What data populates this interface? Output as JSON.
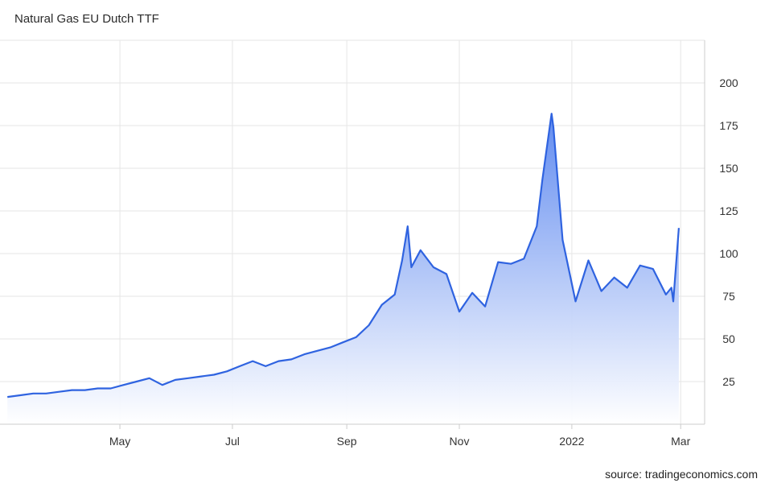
{
  "header": {
    "title": "Natural Gas EU Dutch TTF"
  },
  "footer": {
    "source": "source: tradingeconomics.com"
  },
  "colors": {
    "line": "#2f63e0",
    "fill_top": "#5a86ef",
    "fill_bottom": "#ffffff",
    "grid": "#e6e6e6",
    "axis": "#cccccc"
  },
  "chart_data": {
    "type": "area",
    "title": "Natural Gas EU Dutch TTF",
    "xlabel": "",
    "ylabel": "",
    "x_tick_labels": [
      {
        "date": "2021-05-01",
        "label": "May"
      },
      {
        "date": "2021-07-01",
        "label": "Jul"
      },
      {
        "date": "2021-09-01",
        "label": "Sep"
      },
      {
        "date": "2021-11-01",
        "label": "Nov"
      },
      {
        "date": "2022-01-01",
        "label": "2022"
      },
      {
        "date": "2022-03-01",
        "label": "Mar"
      }
    ],
    "y_tick_labels": [
      25,
      50,
      75,
      100,
      125,
      150,
      175,
      200
    ],
    "xlim": [
      "2021-02-25",
      "2022-03-14"
    ],
    "ylim": [
      0,
      225
    ],
    "grid": true,
    "legend": "none",
    "y_axis_position": "right",
    "series": [
      {
        "x": [
          "2021-03-01",
          "2021-03-08",
          "2021-03-15",
          "2021-03-22",
          "2021-03-29",
          "2021-04-05",
          "2021-04-12",
          "2021-04-19",
          "2021-04-26",
          "2021-05-03",
          "2021-05-10",
          "2021-05-17",
          "2021-05-24",
          "2021-05-31",
          "2021-06-07",
          "2021-06-14",
          "2021-06-21",
          "2021-06-28",
          "2021-07-05",
          "2021-07-12",
          "2021-07-19",
          "2021-07-26",
          "2021-08-02",
          "2021-08-09",
          "2021-08-16",
          "2021-08-23",
          "2021-08-30",
          "2021-09-06",
          "2021-09-13",
          "2021-09-20",
          "2021-09-27",
          "2021-10-01",
          "2021-10-04",
          "2021-10-06",
          "2021-10-11",
          "2021-10-18",
          "2021-10-25",
          "2021-11-01",
          "2021-11-08",
          "2021-11-15",
          "2021-11-22",
          "2021-11-29",
          "2021-12-06",
          "2021-12-13",
          "2021-12-16",
          "2021-12-21",
          "2021-12-22",
          "2021-12-27",
          "2022-01-03",
          "2022-01-10",
          "2022-01-17",
          "2022-01-24",
          "2022-01-31",
          "2022-02-07",
          "2022-02-14",
          "2022-02-21",
          "2022-02-24",
          "2022-02-25",
          "2022-02-28"
        ],
        "values": [
          16,
          17,
          18,
          18,
          19,
          20,
          20,
          21,
          21,
          23,
          25,
          27,
          23,
          26,
          27,
          28,
          29,
          31,
          34,
          37,
          34,
          37,
          38,
          41,
          43,
          45,
          48,
          51,
          58,
          70,
          76,
          96,
          116,
          92,
          102,
          92,
          88,
          66,
          77,
          69,
          95,
          94,
          97,
          116,
          143,
          182,
          174,
          108,
          72,
          96,
          78,
          86,
          80,
          93,
          91,
          76,
          80,
          72,
          115
        ]
      }
    ]
  }
}
